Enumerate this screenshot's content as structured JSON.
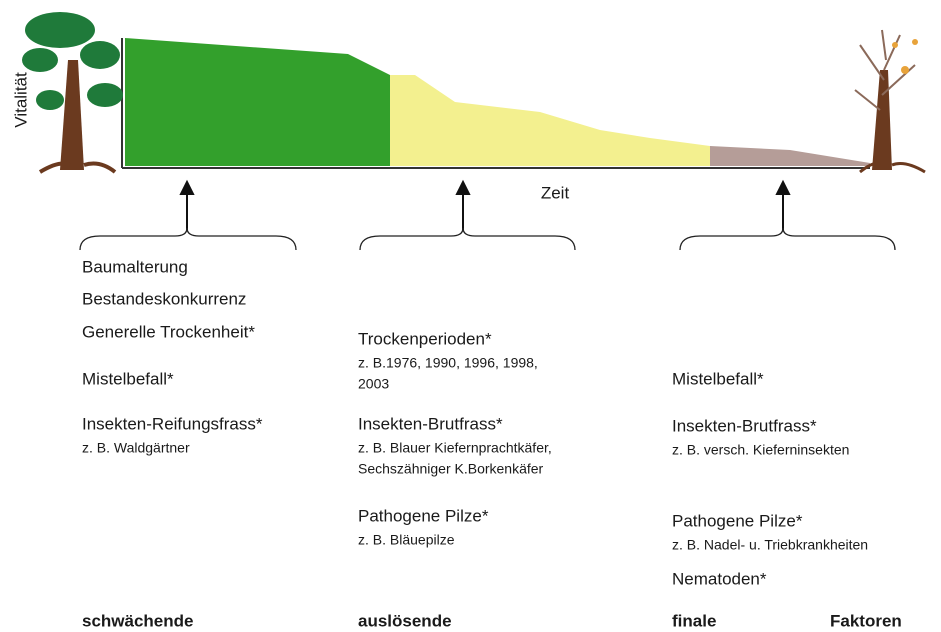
{
  "axis": {
    "y_label": "Vitalität",
    "x_label": "Zeit"
  },
  "columns": [
    {
      "items": [
        {
          "text": "Baumalterung"
        },
        {
          "text": "Bestandeskonkurrenz"
        },
        {
          "text": "Generelle Trockenheit*"
        },
        {
          "text": "Mistelbefall*"
        },
        {
          "text": "Insekten-Reifungsfrass*",
          "example": [
            "z. B. Waldgärtner"
          ]
        }
      ]
    },
    {
      "items": [
        {
          "text": "Trockenperioden*",
          "example": [
            "z. B.1976, 1990, 1996, 1998,",
            "2003"
          ]
        },
        {
          "text": "Insekten-Brutfrass*",
          "example": [
            "z. B. Blauer Kiefernprachtkäfer,",
            "Sechszähniger K.Borkenkäfer"
          ]
        },
        {
          "text": "Pathogene Pilze*",
          "example": [
            "z. B. Bläuepilze"
          ]
        }
      ]
    },
    {
      "items": [
        {
          "text": "Mistelbefall*"
        },
        {
          "text": "Insekten-Brutfrass*",
          "example": [
            "z. B. versch. Kieferninsekten"
          ]
        },
        {
          "text": "Pathogene Pilze*",
          "example": [
            "z. B. Nadel- u. Triebkrankheiten"
          ]
        },
        {
          "text": "Nematoden*"
        }
      ]
    }
  ],
  "footer": [
    "schwächende",
    "auslösende",
    "finale",
    "Faktoren"
  ]
}
